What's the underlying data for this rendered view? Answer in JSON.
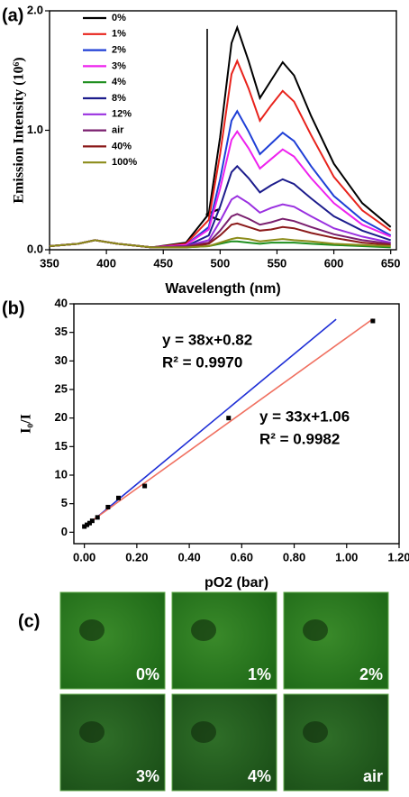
{
  "chart_data": [
    {
      "type": "line",
      "panel_label": "(a)",
      "xlabel": "Wavelength (nm)",
      "ylabel": "Emission Intensity (10⁶)",
      "x": [
        350,
        375,
        390,
        410,
        440,
        470,
        490,
        500,
        510,
        515,
        525,
        535,
        545,
        555,
        565,
        580,
        600,
        625,
        650
      ],
      "xlim": [
        350,
        655
      ],
      "xticks": [
        350,
        400,
        450,
        500,
        550,
        600,
        650
      ],
      "ylim": [
        0,
        2.0
      ],
      "yticks": [
        {
          "value": 0,
          "label": "0.0"
        },
        {
          "value": 1,
          "label": "1.0"
        },
        {
          "value": 2,
          "label": "2.0"
        }
      ],
      "legend": "upper left",
      "series": [
        {
          "name": "0%",
          "color": "#000000",
          "values": [
            0.03,
            0.05,
            0.08,
            0.05,
            0.02,
            0.06,
            0.3,
            0.94,
            1.73,
            1.86,
            1.58,
            1.27,
            1.42,
            1.57,
            1.46,
            1.12,
            0.72,
            0.39,
            0.19
          ]
        },
        {
          "name": "1%",
          "color": "#e8231c",
          "values": [
            0.03,
            0.05,
            0.08,
            0.05,
            0.02,
            0.05,
            0.25,
            0.8,
            1.47,
            1.58,
            1.35,
            1.08,
            1.21,
            1.33,
            1.24,
            0.96,
            0.61,
            0.33,
            0.16
          ]
        },
        {
          "name": "2%",
          "color": "#1f3fd6",
          "values": [
            0.03,
            0.05,
            0.08,
            0.05,
            0.02,
            0.04,
            0.19,
            0.59,
            1.08,
            1.16,
            0.99,
            0.8,
            0.89,
            0.98,
            0.91,
            0.7,
            0.45,
            0.25,
            0.12
          ]
        },
        {
          "name": "3%",
          "color": "#ee22ee",
          "values": [
            0.03,
            0.05,
            0.08,
            0.05,
            0.02,
            0.04,
            0.17,
            0.51,
            0.92,
            0.99,
            0.85,
            0.68,
            0.76,
            0.84,
            0.78,
            0.6,
            0.39,
            0.21,
            0.11
          ]
        },
        {
          "name": "4%",
          "color": "#1f8f1f",
          "values": [
            0.03,
            0.05,
            0.08,
            0.05,
            0.02,
            0.02,
            0.03,
            0.05,
            0.07,
            0.07,
            0.06,
            0.05,
            0.06,
            0.06,
            0.06,
            0.05,
            0.04,
            0.03,
            0.02
          ]
        },
        {
          "name": "8%",
          "color": "#1c1c8c",
          "values": [
            0.03,
            0.05,
            0.08,
            0.05,
            0.02,
            0.03,
            0.12,
            0.36,
            0.65,
            0.7,
            0.6,
            0.48,
            0.54,
            0.59,
            0.55,
            0.43,
            0.28,
            0.16,
            0.08
          ]
        },
        {
          "name": "12%",
          "color": "#9a30e0",
          "values": [
            0.03,
            0.05,
            0.08,
            0.05,
            0.02,
            0.03,
            0.08,
            0.24,
            0.42,
            0.45,
            0.39,
            0.31,
            0.35,
            0.38,
            0.36,
            0.28,
            0.18,
            0.11,
            0.06
          ]
        },
        {
          "name": "air",
          "color": "#7a1f6e",
          "values": [
            0.03,
            0.05,
            0.08,
            0.05,
            0.02,
            0.03,
            0.06,
            0.16,
            0.28,
            0.3,
            0.26,
            0.21,
            0.23,
            0.26,
            0.24,
            0.19,
            0.13,
            0.08,
            0.05
          ]
        },
        {
          "name": "40%",
          "color": "#8b1a1a",
          "values": [
            0.03,
            0.05,
            0.08,
            0.05,
            0.02,
            0.02,
            0.05,
            0.12,
            0.21,
            0.22,
            0.19,
            0.16,
            0.17,
            0.19,
            0.18,
            0.14,
            0.1,
            0.06,
            0.04
          ]
        },
        {
          "name": "100%",
          "color": "#8c8c1a",
          "values": [
            0.03,
            0.05,
            0.08,
            0.05,
            0.02,
            0.02,
            0.03,
            0.06,
            0.09,
            0.1,
            0.09,
            0.07,
            0.08,
            0.09,
            0.08,
            0.07,
            0.05,
            0.04,
            0.03
          ]
        }
      ]
    },
    {
      "type": "scatter",
      "panel_label": "(b)",
      "xlabel": "pO2 (bar)",
      "ylabel": "I₀/I",
      "x": [
        0,
        0.01,
        0.02,
        0.03,
        0.05,
        0.09,
        0.13,
        0.23,
        0.55,
        1.1
      ],
      "values": [
        1,
        1.3,
        1.6,
        2,
        2.6,
        4.4,
        6,
        8.1,
        20,
        37
      ],
      "color": "#000000",
      "xlim": [
        -0.04,
        1.2
      ],
      "xticks": [
        {
          "value": 0,
          "label": "0.00"
        },
        {
          "value": 0.2,
          "label": "0.20"
        },
        {
          "value": 0.4,
          "label": "0.40"
        },
        {
          "value": 0.6,
          "label": "0.60"
        },
        {
          "value": 0.8,
          "label": "0.80"
        },
        {
          "value": 1,
          "label": "1.00"
        },
        {
          "value": 1.2,
          "label": "1.20"
        }
      ],
      "ylim": [
        -2,
        40
      ],
      "yticks": [
        0,
        5,
        10,
        15,
        20,
        25,
        30,
        35,
        40
      ],
      "fit_lines": [
        {
          "color": "#1f2fd6",
          "x": [
            0,
            0.96
          ],
          "values": [
            0.82,
            37.3
          ]
        },
        {
          "color": "#f07060",
          "x": [
            0,
            1.1
          ],
          "values": [
            1.06,
            37.36
          ]
        }
      ],
      "annotations": [
        "y = 38x+0.82",
        "R² = 0.9970",
        "y = 33x+1.06",
        "R² = 0.9982"
      ]
    }
  ],
  "panel_c": {
    "label": "(c)",
    "tiles": [
      "0%",
      "1%",
      "2%",
      "3%",
      "4%",
      "air"
    ]
  }
}
